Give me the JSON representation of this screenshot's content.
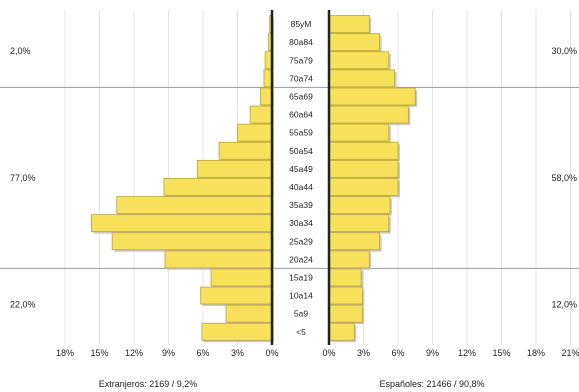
{
  "chart_data": {
    "type": "bar",
    "categories": [
      "85yM",
      "80a84",
      "75a79",
      "70a74",
      "65a69",
      "60a64",
      "55a59",
      "50a54",
      "45a49",
      "40a44",
      "35a39",
      "30a34",
      "25a29",
      "20a24",
      "15a19",
      "10a14",
      "5a9",
      "<5"
    ],
    "series": [
      {
        "name": "Extranjeros: 2169 / 9,2%",
        "values": [
          0.2,
          0.3,
          0.6,
          0.7,
          1.0,
          1.9,
          3.0,
          4.6,
          6.5,
          9.4,
          13.5,
          15.7,
          13.9,
          9.3,
          5.3,
          6.2,
          4.0,
          6.1
        ]
      },
      {
        "name": "Españoles: 21466 / 90,8%",
        "values": [
          3.5,
          4.4,
          5.2,
          5.7,
          7.5,
          6.9,
          5.2,
          6.0,
          6.0,
          6.0,
          5.3,
          5.2,
          4.4,
          3.5,
          2.8,
          2.9,
          2.9,
          2.2
        ]
      }
    ],
    "xticks_left": [
      "18%",
      "15%",
      "12%",
      "9%",
      "6%",
      "3%",
      "0%"
    ],
    "xticks_right": [
      "0%",
      "3%",
      "6%",
      "9%",
      "12%",
      "15%",
      "18%",
      "21%"
    ],
    "x_range_left": [
      0,
      18
    ],
    "x_range_right": [
      0,
      21
    ],
    "bands_left": [
      "2,0%",
      "77,0%",
      "22,0%"
    ],
    "bands_right": [
      "30,0%",
      "58,0%",
      "12,0%"
    ],
    "band_boundaries": [
      "65a69",
      "15a19"
    ],
    "grid": true
  },
  "colors": {
    "bar": "#f7e15a",
    "bar_border": "#b9a33a",
    "axis": "#222222"
  }
}
